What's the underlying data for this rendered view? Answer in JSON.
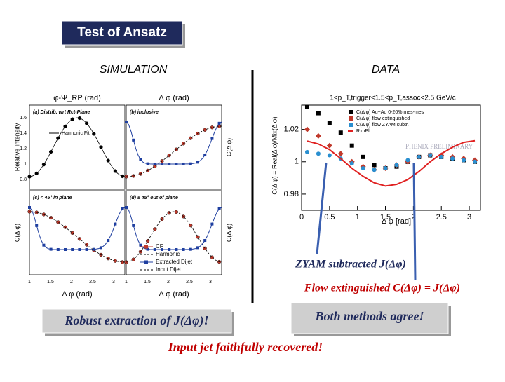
{
  "title": "Test of Ansatz",
  "simulation": {
    "heading": "SIMULATION",
    "top_axis_labels": [
      "φ-Ψ_RP (rad)",
      "Δ φ (rad)"
    ],
    "bottom_axis_labels": [
      "Δ φ (rad)",
      "Δ φ (rad)"
    ],
    "y_labels": [
      "Relative Intensity",
      "C(Δ φ)",
      "C(Δ φ)",
      "C(Δ φ)"
    ],
    "panel_labels": [
      "(a) Distrib. wrt Rct-Plane",
      "(b) inclusive",
      "(c) < 45° in plane",
      "(d) ± 45° out of plane"
    ],
    "harmonic_fit_label": "Harmonic Fit",
    "legend": [
      "CF",
      "Harmonic",
      "Extracted Dijet",
      "Input Dijet"
    ],
    "x_tick_labels": [
      "1",
      "1.5",
      "2",
      "2.5",
      "3"
    ],
    "y_tick_labels": [
      "1.6",
      "1.4",
      "1.2",
      "1",
      "0.8"
    ]
  },
  "chart_data": {
    "type": "scatter",
    "heading": "DATA",
    "title": "1<p_T,trigger<1.5<p_T,assoc<2.5 GeV/c",
    "x_label": "Δ φ [rad]",
    "y_label": "C(Δ φ) = Real(Δ φ)/Mix(Δ φ)",
    "watermark": "PHENIX PRELIMINARY",
    "x": [
      0.1,
      0.3,
      0.5,
      0.7,
      0.9,
      1.1,
      1.3,
      1.5,
      1.7,
      1.9,
      2.1,
      2.3,
      2.5,
      2.7,
      2.9,
      3.1
    ],
    "series": [
      {
        "name": "C(Δ φ) Au+Au 0-20% mes-mes",
        "color": "#000000",
        "marker": "square",
        "values": [
          1.034,
          1.03,
          1.024,
          1.018,
          1.01,
          1.003,
          0.998,
          0.996,
          0.997,
          1.0,
          1.003,
          1.004,
          1.003,
          1.002,
          1.001,
          1.0
        ]
      },
      {
        "name": "C(Δ φ) flow extinguished",
        "color": "#c0392b",
        "marker": "diamond",
        "values": [
          1.02,
          1.016,
          1.01,
          1.005,
          1.0,
          0.997,
          0.995,
          0.996,
          0.998,
          1.0,
          1.003,
          1.004,
          1.004,
          1.003,
          1.002,
          1.001
        ]
      },
      {
        "name": "C(Δ φ) flow ZYAM subtr.",
        "color": "#2a8fd0",
        "marker": "circle",
        "values": [
          1.006,
          1.005,
          1.004,
          1.002,
          0.999,
          0.996,
          0.995,
          0.996,
          0.998,
          1.001,
          1.003,
          1.004,
          1.003,
          1.002,
          1.001,
          1.0
        ]
      },
      {
        "name": "RxnPl.",
        "color": "#e02020",
        "marker": "line",
        "values": [
          1.0128,
          1.011,
          1.0075,
          1.002,
          0.996,
          0.991,
          0.987,
          0.985,
          0.986,
          0.989,
          0.994,
          1.0,
          1.005,
          1.009,
          1.012,
          1.013
        ]
      }
    ],
    "xlim": [
      0,
      3.2
    ],
    "ylim": [
      0.97,
      1.035
    ],
    "xticks": [
      0,
      0.5,
      1,
      1.5,
      2,
      2.5,
      3
    ],
    "yticks": [
      0.98,
      1,
      1.02
    ]
  },
  "annotations": {
    "zyam": "ZYAM subtracted J(Δφ)",
    "flow": "Flow extinguished C(Δφ) = J(Δφ)",
    "robust": "Robust extraction of J(Δφ)!",
    "agree": "Both methods agree!",
    "recovered": "Input jet faithfully recovered!"
  }
}
